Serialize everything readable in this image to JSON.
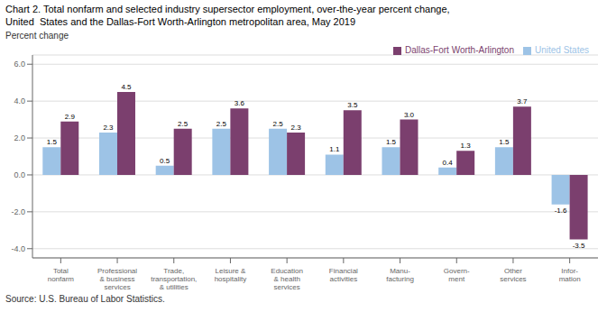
{
  "chart_data": {
    "type": "bar",
    "title": "Chart 2. Total nonfarm and selected industry supersector employment, over-the-year percent change,",
    "subtitle": "United  States and the Dallas-Fort Worth-Arlington metropolitan area, May 2019",
    "ylabel": "Percent change",
    "annotations": [
      "Source: U.S. Bureau of Labor Statistics."
    ],
    "categories": [
      "Total\nnonfarm",
      "Professional\n& business\nservices",
      "Trade,\ntransportation,\n& utilities",
      "Leisure &\nhospitality",
      "Education\n& health\nservices",
      "Financial\nactivities",
      "Manu-\nfacturing",
      "Govern-\nment",
      "Other\nservices",
      "Infor-\nmation"
    ],
    "series": [
      {
        "name": "United States",
        "color": "#9DC3E6",
        "values": [
          1.5,
          2.3,
          0.5,
          2.5,
          2.5,
          1.1,
          1.5,
          0.4,
          1.5,
          -1.6
        ],
        "value_labels": [
          "1.5",
          "2.3",
          "0.5",
          "2.5",
          "2.5",
          "1.1",
          "1.5",
          "0.4",
          "1.5",
          "-1.6"
        ]
      },
      {
        "name": "Dallas-Fort Worth-Arlington",
        "color": "#7B3F6E",
        "values": [
          2.9,
          4.5,
          2.5,
          3.6,
          2.3,
          3.5,
          3.0,
          1.3,
          3.7,
          -3.5
        ],
        "value_labels": [
          "2.9",
          "4.5",
          "2.5",
          "3.6",
          "2.3",
          "3.5",
          "3.0",
          "1.3",
          "3.7",
          "-3.5"
        ]
      }
    ],
    "ylim": [
      -4.5,
      6.5
    ],
    "yticks": [
      {
        "value": -4.0,
        "label": "-4.0"
      },
      {
        "value": -2.0,
        "label": "-2.0"
      },
      {
        "value": 0.0,
        "label": "0.0"
      },
      {
        "value": 2.0,
        "label": "2.0"
      },
      {
        "value": 4.0,
        "label": "4.0"
      },
      {
        "value": 6.0,
        "label": "6.0"
      }
    ],
    "grid": true,
    "legend": "upper right",
    "data_labels": true
  }
}
